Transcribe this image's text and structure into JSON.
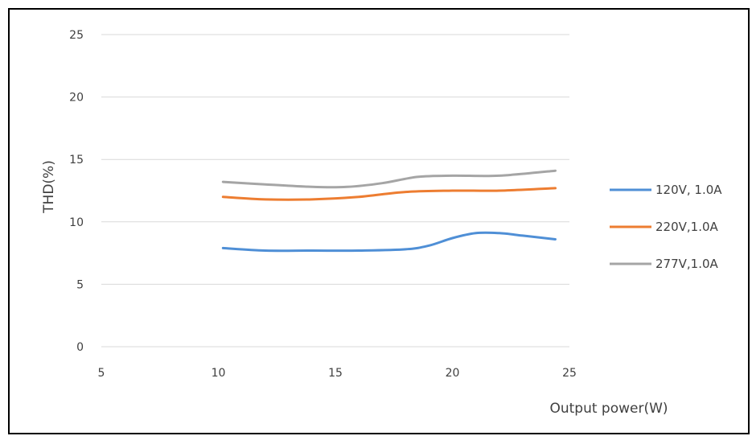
{
  "chart_data": {
    "type": "line",
    "title": "",
    "xlabel": "Output power(W)",
    "ylabel": "THD(%)",
    "xlim": [
      5,
      25
    ],
    "ylim": [
      0,
      25
    ],
    "xticks": [
      5,
      10,
      15,
      20,
      25
    ],
    "yticks": [
      0,
      5,
      10,
      15,
      20,
      25
    ],
    "x_tick_labels": [
      "5",
      "10",
      "15",
      "20",
      "25"
    ],
    "y_tick_labels": [
      "0",
      "5",
      "10",
      "15",
      "20",
      "25"
    ],
    "grid": "horizontal",
    "legend_position": "right",
    "series": [
      {
        "name": "120V, 1.0A",
        "color": "#4f8fd6",
        "x": [
          10.2,
          12.0,
          14.0,
          16.0,
          18.0,
          19.0,
          20.0,
          21.0,
          22.0,
          23.0,
          24.4
        ],
        "y": [
          7.9,
          7.7,
          7.7,
          7.7,
          7.8,
          8.1,
          8.7,
          9.1,
          9.1,
          8.9,
          8.6
        ]
      },
      {
        "name": "220V,1.0A",
        "color": "#ed7d31",
        "x": [
          10.2,
          12.0,
          14.0,
          16.0,
          18.0,
          20.0,
          22.0,
          24.4
        ],
        "y": [
          12.0,
          11.8,
          11.8,
          12.0,
          12.4,
          12.5,
          12.5,
          12.7
        ]
      },
      {
        "name": "277V,1.0A",
        "color": "#a5a5a5",
        "x": [
          10.2,
          12.0,
          14.0,
          15.5,
          17.0,
          18.5,
          20.0,
          22.0,
          24.4
        ],
        "y": [
          13.2,
          13.0,
          12.8,
          12.8,
          13.1,
          13.6,
          13.7,
          13.7,
          14.1
        ]
      }
    ]
  }
}
